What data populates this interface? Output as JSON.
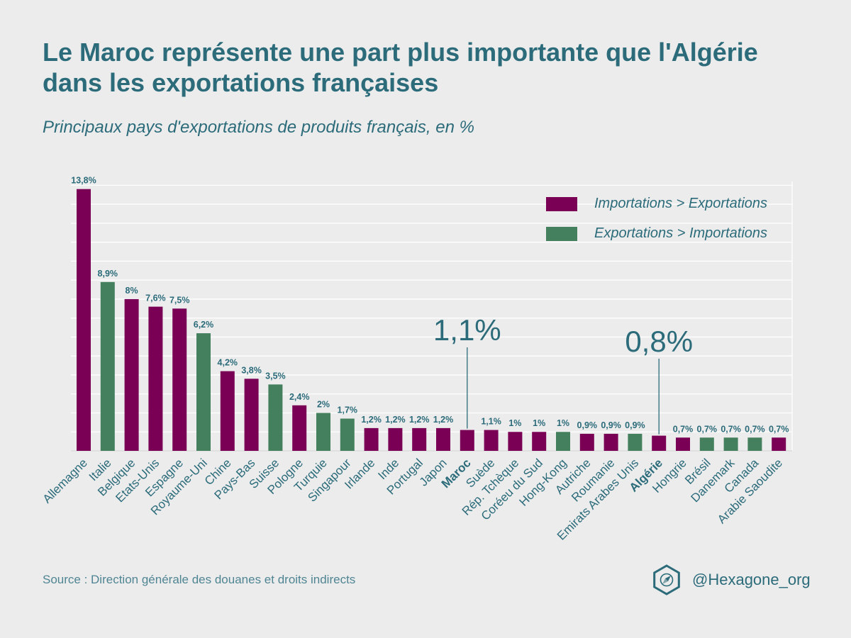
{
  "title": "Le Maroc représente une part plus importante que l'Algérie dans les exportations françaises",
  "subtitle": "Principaux pays d'exportations de produits français, en %",
  "source": "Source : Direction générale des douanes et droits indirects",
  "brand": "@Hexagone_org",
  "colors": {
    "importations": "#7a0055",
    "exportations": "#45805e",
    "text": "#2b6b7a",
    "grid": "#ffffff"
  },
  "legend": [
    {
      "label": "Importations > Exportations",
      "color": "#7a0055"
    },
    {
      "label": "Exportations > Importations",
      "color": "#45805e"
    }
  ],
  "chart_data": {
    "type": "bar",
    "ylim": [
      0,
      14.2
    ],
    "grid": true,
    "legend_position": "top-right",
    "categories": [
      "Allemagne",
      "Italie",
      "Belgique",
      "Etats-Unis",
      "Espagne",
      "Royaume-Uni",
      "Chine",
      "Pays-Bas",
      "Suisse",
      "Pologne",
      "Turquie",
      "Singapour",
      "Irlande",
      "Inde",
      "Portugal",
      "Japon",
      "Maroc",
      "Suède",
      "Rép. Tchèque",
      "Coréeu du Sud",
      "Hong-Kong",
      "Autriche",
      "Roumanie",
      "Emirats Arabes Unis",
      "Algérie",
      "Hongrie",
      "Brésil",
      "Danemark",
      "Canada",
      "Arabie Saoudite"
    ],
    "values": [
      13.8,
      8.9,
      8,
      7.6,
      7.5,
      6.2,
      4.2,
      3.8,
      3.5,
      2.4,
      2,
      1.7,
      1.2,
      1.2,
      1.2,
      1.2,
      1.1,
      1.1,
      1,
      1,
      1,
      0.9,
      0.9,
      0.9,
      0.8,
      0.7,
      0.7,
      0.7,
      0.7,
      0.7
    ],
    "labels": [
      "13,8%",
      "8,9%",
      "8%",
      "7,6%",
      "7,5%",
      "6,2%",
      "4,2%",
      "3,8%",
      "3,5%",
      "2,4%",
      "2%",
      "1,7%",
      "1,2%",
      "1,2%",
      "1,2%",
      "1,2%",
      "",
      "1,1%",
      "1%",
      "1%",
      "1%",
      "0,9%",
      "0,9%",
      "0,9%",
      "",
      "0,7%",
      "0,7%",
      "0,7%",
      "0,7%",
      "0,7%"
    ],
    "groups": [
      "importations",
      "exportations",
      "importations",
      "importations",
      "importations",
      "exportations",
      "importations",
      "importations",
      "exportations",
      "importations",
      "exportations",
      "exportations",
      "importations",
      "importations",
      "importations",
      "importations",
      "importations",
      "importations",
      "importations",
      "importations",
      "exportations",
      "importations",
      "importations",
      "exportations",
      "importations",
      "importations",
      "exportations",
      "exportations",
      "exportations",
      "importations"
    ],
    "highlighted": [
      "Maroc",
      "Algérie"
    ],
    "annotations": [
      {
        "category": "Maroc",
        "text": "1,1%"
      },
      {
        "category": "Algérie",
        "text": "0,8%"
      }
    ]
  }
}
